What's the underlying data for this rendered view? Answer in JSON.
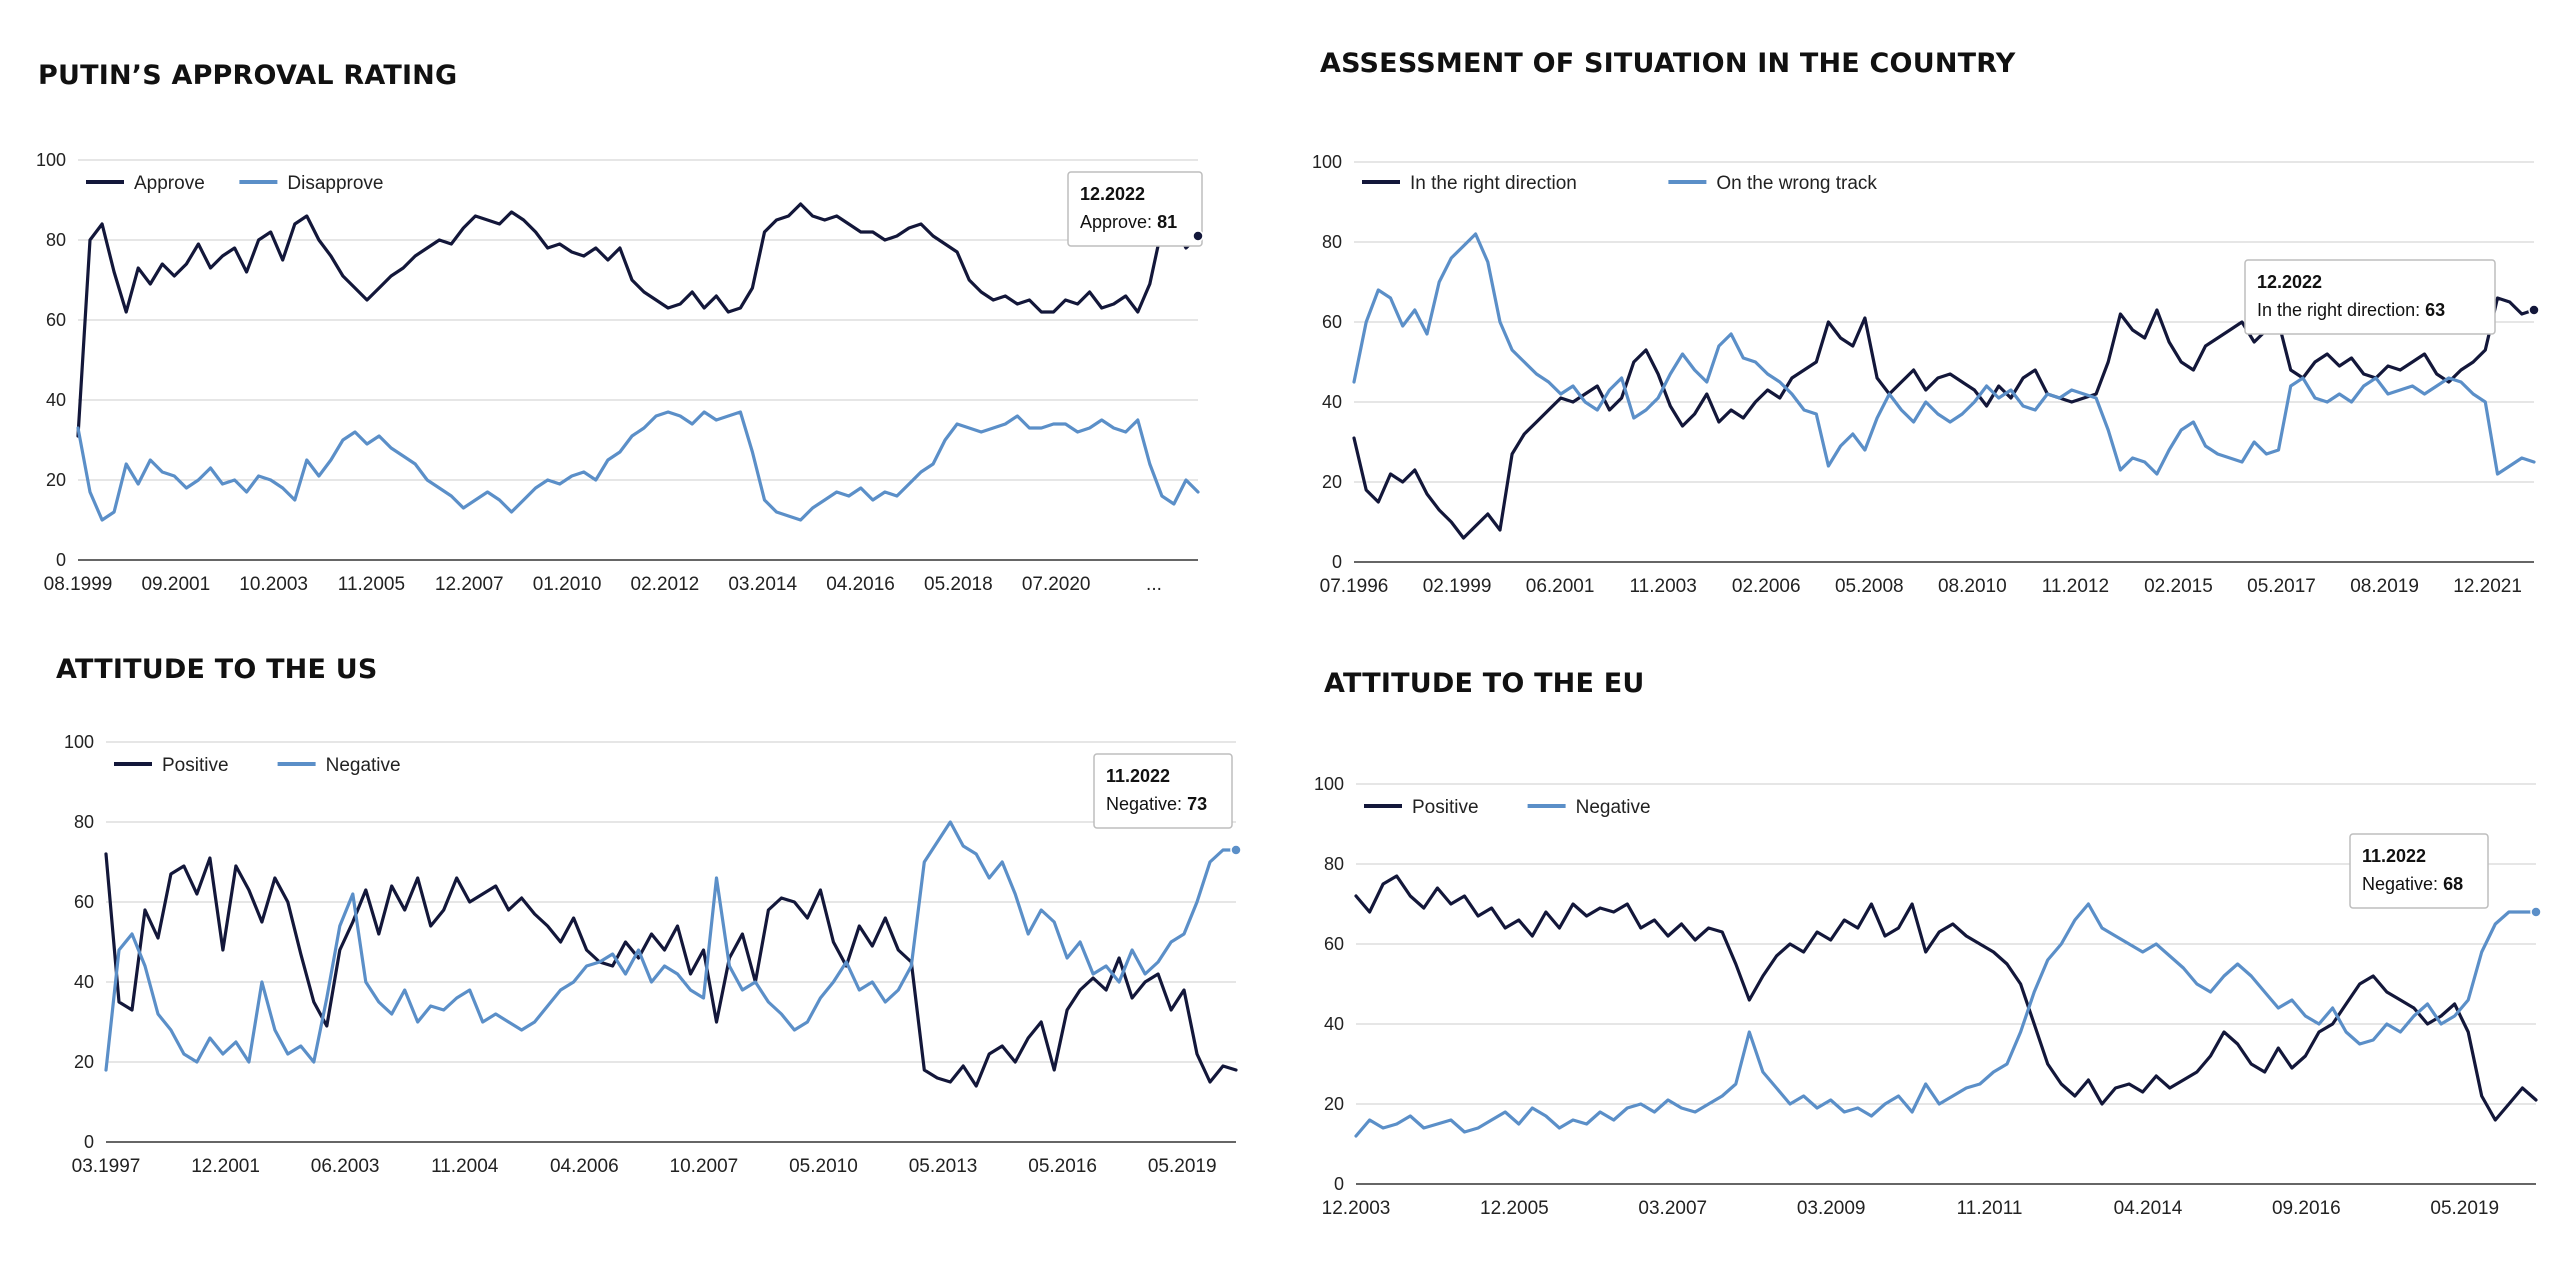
{
  "colors": {
    "series1": "#13173a",
    "series2": "#5b8fc8",
    "grid": "#cccccc",
    "axis": "#333333",
    "text": "#222222"
  },
  "charts": [
    {
      "id": "approval",
      "title": "PUTIN’S APPROVAL RATING",
      "chart_data": {
        "type": "line",
        "ylim": [
          0,
          100
        ],
        "yticks": [
          0,
          20,
          40,
          60,
          80,
          100
        ],
        "x_tick_labels": [
          "08.1999",
          "09.2001",
          "10.2003",
          "11.2005",
          "12.2007",
          "01.2010",
          "02.2012",
          "03.2014",
          "04.2016",
          "05.2018",
          "07.2020",
          "..."
        ],
        "x_range": [
          "08.1999",
          "12.2022"
        ],
        "legend": "top-left",
        "series": [
          {
            "name": "Approve",
            "color": "#13173a",
            "values": [
              31,
              80,
              84,
              72,
              62,
              73,
              69,
              74,
              71,
              74,
              79,
              73,
              76,
              78,
              72,
              80,
              82,
              75,
              84,
              86,
              80,
              76,
              71,
              68,
              65,
              68,
              71,
              73,
              76,
              78,
              80,
              79,
              83,
              86,
              85,
              84,
              87,
              85,
              82,
              78,
              79,
              77,
              76,
              78,
              75,
              78,
              70,
              67,
              65,
              63,
              64,
              67,
              63,
              66,
              62,
              63,
              68,
              82,
              85,
              86,
              89,
              86,
              85,
              86,
              84,
              82,
              82,
              80,
              81,
              83,
              84,
              81,
              79,
              77,
              70,
              67,
              65,
              66,
              64,
              65,
              62,
              62,
              65,
              64,
              67,
              63,
              64,
              66,
              62,
              69,
              83,
              84,
              78,
              81
            ]
          },
          {
            "name": "Disapprove",
            "color": "#5b8fc8",
            "values": [
              33,
              17,
              10,
              12,
              24,
              19,
              25,
              22,
              21,
              18,
              20,
              23,
              19,
              20,
              17,
              21,
              20,
              18,
              15,
              25,
              21,
              25,
              30,
              32,
              29,
              31,
              28,
              26,
              24,
              20,
              18,
              16,
              13,
              15,
              17,
              15,
              12,
              15,
              18,
              20,
              19,
              21,
              22,
              20,
              25,
              27,
              31,
              33,
              36,
              37,
              36,
              34,
              37,
              35,
              36,
              37,
              27,
              15,
              12,
              11,
              10,
              13,
              15,
              17,
              16,
              18,
              15,
              17,
              16,
              19,
              22,
              24,
              30,
              34,
              33,
              32,
              33,
              34,
              36,
              33,
              33,
              34,
              34,
              32,
              33,
              35,
              33,
              32,
              35,
              24,
              16,
              14,
              20,
              17
            ]
          }
        ],
        "tooltip": {
          "title": "12.2022",
          "label": "Approve",
          "value": 81
        }
      }
    },
    {
      "id": "situation",
      "title": "ASSESSMENT OF SITUATION IN THE COUNTRY",
      "chart_data": {
        "type": "line",
        "ylim": [
          0,
          100
        ],
        "yticks": [
          0,
          20,
          40,
          60,
          80,
          100
        ],
        "x_tick_labels": [
          "07.1996",
          "02.1999",
          "06.2001",
          "11.2003",
          "02.2006",
          "05.2008",
          "08.2010",
          "11.2012",
          "02.2015",
          "05.2017",
          "08.2019",
          "12.2021"
        ],
        "x_range": [
          "07.1996",
          "12.2022"
        ],
        "legend": "top-left",
        "series": [
          {
            "name": "In the right direction",
            "color": "#13173a",
            "values": [
              31,
              18,
              15,
              22,
              20,
              23,
              17,
              13,
              10,
              6,
              9,
              12,
              8,
              27,
              32,
              35,
              38,
              41,
              40,
              42,
              44,
              38,
              41,
              50,
              53,
              47,
              39,
              34,
              37,
              42,
              35,
              38,
              36,
              40,
              43,
              41,
              46,
              48,
              50,
              60,
              56,
              54,
              61,
              46,
              42,
              45,
              48,
              43,
              46,
              47,
              45,
              43,
              39,
              44,
              41,
              46,
              48,
              42,
              41,
              40,
              41,
              42,
              50,
              62,
              58,
              56,
              63,
              55,
              50,
              48,
              54,
              56,
              58,
              60,
              55,
              58,
              60,
              48,
              46,
              50,
              52,
              49,
              51,
              47,
              46,
              49,
              48,
              50,
              52,
              47,
              45,
              48,
              50,
              53,
              66,
              65,
              62,
              63
            ]
          },
          {
            "name": "On the wrong track",
            "color": "#5b8fc8",
            "values": [
              45,
              60,
              68,
              66,
              59,
              63,
              57,
              70,
              76,
              79,
              82,
              75,
              60,
              53,
              50,
              47,
              45,
              42,
              44,
              40,
              38,
              43,
              46,
              36,
              38,
              41,
              47,
              52,
              48,
              45,
              54,
              57,
              51,
              50,
              47,
              45,
              42,
              38,
              37,
              24,
              29,
              32,
              28,
              36,
              42,
              38,
              35,
              40,
              37,
              35,
              37,
              40,
              44,
              41,
              43,
              39,
              38,
              42,
              41,
              43,
              42,
              41,
              33,
              23,
              26,
              25,
              22,
              28,
              33,
              35,
              29,
              27,
              26,
              25,
              30,
              27,
              28,
              44,
              46,
              41,
              40,
              42,
              40,
              44,
              46,
              42,
              43,
              44,
              42,
              44,
              46,
              45,
              42,
              40,
              22,
              24,
              26,
              25
            ]
          }
        ],
        "tooltip": {
          "title": "12.2022",
          "label": "In the right direction",
          "value": 63
        }
      }
    },
    {
      "id": "us",
      "title": "ATTITUDE TO THE US",
      "chart_data": {
        "type": "line",
        "ylim": [
          0,
          100
        ],
        "yticks": [
          0,
          20,
          40,
          60,
          80,
          100
        ],
        "x_tick_labels": [
          "03.1997",
          "12.2001",
          "06.2003",
          "11.2004",
          "04.2006",
          "10.2007",
          "05.2010",
          "05.2013",
          "05.2016",
          "05.2019"
        ],
        "x_range": [
          "03.1997",
          "11.2022"
        ],
        "legend": "top-left",
        "series": [
          {
            "name": "Positive",
            "color": "#13173a",
            "values": [
              72,
              35,
              33,
              58,
              51,
              67,
              69,
              62,
              71,
              48,
              69,
              63,
              55,
              66,
              60,
              47,
              35,
              29,
              48,
              55,
              63,
              52,
              64,
              58,
              66,
              54,
              58,
              66,
              60,
              62,
              64,
              58,
              61,
              57,
              54,
              50,
              56,
              48,
              45,
              44,
              50,
              46,
              52,
              48,
              54,
              42,
              48,
              30,
              46,
              52,
              40,
              58,
              61,
              60,
              56,
              63,
              50,
              44,
              54,
              49,
              56,
              48,
              45,
              18,
              16,
              15,
              19,
              14,
              22,
              24,
              20,
              26,
              30,
              18,
              33,
              38,
              41,
              38,
              46,
              36,
              40,
              42,
              33,
              38,
              22,
              15,
              19,
              18
            ]
          },
          {
            "name": "Negative",
            "color": "#5b8fc8",
            "values": [
              18,
              48,
              52,
              44,
              32,
              28,
              22,
              20,
              26,
              22,
              25,
              20,
              40,
              28,
              22,
              24,
              20,
              36,
              54,
              62,
              40,
              35,
              32,
              38,
              30,
              34,
              33,
              36,
              38,
              30,
              32,
              30,
              28,
              30,
              34,
              38,
              40,
              44,
              45,
              47,
              42,
              48,
              40,
              44,
              42,
              38,
              36,
              66,
              44,
              38,
              40,
              35,
              32,
              28,
              30,
              36,
              40,
              45,
              38,
              40,
              35,
              38,
              44,
              70,
              75,
              80,
              74,
              72,
              66,
              70,
              62,
              52,
              58,
              55,
              46,
              50,
              42,
              44,
              40,
              48,
              42,
              45,
              50,
              52,
              60,
              70,
              73,
              73
            ]
          }
        ],
        "tooltip": {
          "title": "11.2022",
          "label": "Negative",
          "value": 73
        }
      }
    },
    {
      "id": "eu",
      "title": "ATTITUDE TO THE EU",
      "chart_data": {
        "type": "line",
        "ylim": [
          0,
          100
        ],
        "yticks": [
          0,
          20,
          40,
          60,
          80,
          100
        ],
        "x_tick_labels": [
          "12.2003",
          "12.2005",
          "03.2007",
          "03.2009",
          "11.2011",
          "04.2014",
          "09.2016",
          "05.2019"
        ],
        "x_range": [
          "12.2003",
          "11.2022"
        ],
        "legend": "top-left",
        "series": [
          {
            "name": "Positive",
            "color": "#13173a",
            "values": [
              72,
              68,
              75,
              77,
              72,
              69,
              74,
              70,
              72,
              67,
              69,
              64,
              66,
              62,
              68,
              64,
              70,
              67,
              69,
              68,
              70,
              64,
              66,
              62,
              65,
              61,
              64,
              63,
              55,
              46,
              52,
              57,
              60,
              58,
              63,
              61,
              66,
              64,
              70,
              62,
              64,
              70,
              58,
              63,
              65,
              62,
              60,
              58,
              55,
              50,
              40,
              30,
              25,
              22,
              26,
              20,
              24,
              25,
              23,
              27,
              24,
              26,
              28,
              32,
              38,
              35,
              30,
              28,
              34,
              29,
              32,
              38,
              40,
              45,
              50,
              52,
              48,
              46,
              44,
              40,
              42,
              45,
              38,
              22,
              16,
              20,
              24,
              21
            ]
          },
          {
            "name": "Negative",
            "color": "#5b8fc8",
            "values": [
              12,
              16,
              14,
              15,
              17,
              14,
              15,
              16,
              13,
              14,
              16,
              18,
              15,
              19,
              17,
              14,
              16,
              15,
              18,
              16,
              19,
              20,
              18,
              21,
              19,
              18,
              20,
              22,
              25,
              38,
              28,
              24,
              20,
              22,
              19,
              21,
              18,
              19,
              17,
              20,
              22,
              18,
              25,
              20,
              22,
              24,
              25,
              28,
              30,
              38,
              48,
              56,
              60,
              66,
              70,
              64,
              62,
              60,
              58,
              60,
              57,
              54,
              50,
              48,
              52,
              55,
              52,
              48,
              44,
              46,
              42,
              40,
              44,
              38,
              35,
              36,
              40,
              38,
              42,
              45,
              40,
              42,
              46,
              58,
              65,
              68,
              68,
              68
            ]
          }
        ],
        "tooltip": {
          "title": "11.2022",
          "label": "Negative",
          "value": 68
        }
      }
    }
  ]
}
